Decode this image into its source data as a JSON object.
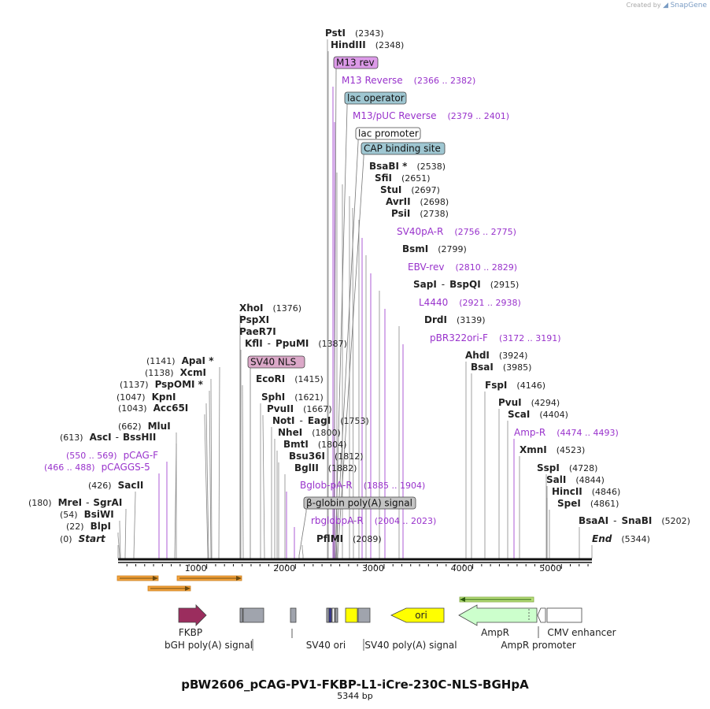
{
  "credit": {
    "text": "Created by",
    "brand": "SnapGene"
  },
  "title": "pBW2606_pCAG-PV1-FKBP-L1-iCre-230C-NLS-BGHpA",
  "subtitle": "5344 bp",
  "sequence_length": 5344,
  "axis_ticks": [
    1000,
    2000,
    3000,
    4000,
    5000
  ],
  "colors": {
    "site": "#000000",
    "primer": "#9933cc",
    "leader": "#888888",
    "primer_leader": "#9933cc"
  },
  "site_labels": [
    {
      "name": "Start",
      "pos": "(0)",
      "side": "left",
      "italic": true
    },
    {
      "name": "BlpI",
      "pos": "(22)",
      "side": "left"
    },
    {
      "name": "BsiWI",
      "pos": "(54)",
      "side": "left"
    },
    {
      "name": "MreI",
      "name2": "SgrAI",
      "pos": "(180)",
      "side": "left"
    },
    {
      "name": "SacII",
      "pos": "(426)",
      "side": "left"
    },
    {
      "name": "pCAGGS-5",
      "pos": "(466 .. 488)",
      "side": "left",
      "primer": true
    },
    {
      "name": "pCAG-F",
      "pos": "(550 .. 569)",
      "side": "left",
      "primer": true
    },
    {
      "name": "AscI",
      "name2": "BssHII",
      "pos": "(613)",
      "side": "left"
    },
    {
      "name": "MluI",
      "pos": "(662)",
      "side": "left"
    },
    {
      "name": "Acc65I",
      "pos": "(1043)",
      "side": "left"
    },
    {
      "name": "KpnI",
      "pos": "(1047)",
      "side": "left"
    },
    {
      "name": "PspOMI *",
      "pos": "(1137)",
      "side": "left"
    },
    {
      "name": "XcmI",
      "pos": "(1138)",
      "side": "left"
    },
    {
      "name": "ApaI *",
      "pos": "(1141)",
      "side": "left"
    },
    {
      "name": "XhoI",
      "pos": "(1376)",
      "side": "right"
    },
    {
      "name": "PspXI",
      "pos": "",
      "side": "right"
    },
    {
      "name": "PaeR7I",
      "pos": "",
      "side": "right"
    },
    {
      "name": "KflI",
      "name2": "PpuMI",
      "pos": "(1387)",
      "side": "right"
    },
    {
      "name": "EcoRI",
      "pos": "(1415)",
      "side": "right"
    },
    {
      "name": "SphI",
      "pos": "(1621)",
      "side": "right"
    },
    {
      "name": "PvuII",
      "pos": "(1667)",
      "side": "right"
    },
    {
      "name": "NotI",
      "name2": "EagI",
      "pos": "(1753)",
      "side": "right"
    },
    {
      "name": "NheI",
      "pos": "(1800)",
      "side": "right"
    },
    {
      "name": "BmtI",
      "pos": "(1804)",
      "side": "right"
    },
    {
      "name": "Bsu36I",
      "pos": "(1812)",
      "side": "right"
    },
    {
      "name": "BglII",
      "pos": "(1882)",
      "side": "right"
    },
    {
      "name": "Bglob-pA-R",
      "pos": "(1885 .. 1904)",
      "side": "right",
      "primer": true
    },
    {
      "name": "rbglobpA-R",
      "pos": "(2004 .. 2023)",
      "side": "right",
      "primer": true
    },
    {
      "name": "PflMI",
      "pos": "(2089)",
      "side": "right"
    },
    {
      "name": "PstI",
      "pos": "(2343)",
      "side": "right"
    },
    {
      "name": "HindIII",
      "pos": "(2348)",
      "side": "right"
    },
    {
      "name": "M13 Reverse",
      "pos": "(2366 .. 2382)",
      "side": "right",
      "primer": true
    },
    {
      "name": "M13/pUC Reverse",
      "pos": "(2379 .. 2401)",
      "side": "right",
      "primer": true
    },
    {
      "name": "BsaBI *",
      "pos": "(2538)",
      "side": "right"
    },
    {
      "name": "SfiI",
      "pos": "(2651)",
      "side": "right"
    },
    {
      "name": "StuI",
      "pos": "(2697)",
      "side": "right"
    },
    {
      "name": "AvrII",
      "pos": "(2698)",
      "side": "right"
    },
    {
      "name": "PsiI",
      "pos": "(2738)",
      "side": "right"
    },
    {
      "name": "SV40pA-R",
      "pos": "(2756 .. 2775)",
      "side": "right",
      "primer": true
    },
    {
      "name": "BsmI",
      "pos": "(2799)",
      "side": "right"
    },
    {
      "name": "EBV-rev",
      "pos": "(2810 .. 2829)",
      "side": "right",
      "primer": true
    },
    {
      "name": "SapI",
      "name2": "BspQI",
      "pos": "(2915)",
      "side": "right"
    },
    {
      "name": "L4440",
      "pos": "(2921 .. 2938)",
      "side": "right",
      "primer": true
    },
    {
      "name": "DrdI",
      "pos": "(3139)",
      "side": "right"
    },
    {
      "name": "pBR322ori-F",
      "pos": "(3172 .. 3191)",
      "side": "right",
      "primer": true
    },
    {
      "name": "AhdI",
      "pos": "(3924)",
      "side": "right"
    },
    {
      "name": "BsaI",
      "pos": "(3985)",
      "side": "right"
    },
    {
      "name": "FspI",
      "pos": "(4146)",
      "side": "right"
    },
    {
      "name": "PvuI",
      "pos": "(4294)",
      "side": "right"
    },
    {
      "name": "ScaI",
      "pos": "(4404)",
      "side": "right"
    },
    {
      "name": "Amp-R",
      "pos": "(4474 .. 4493)",
      "side": "right",
      "primer": true
    },
    {
      "name": "XmnI",
      "pos": "(4523)",
      "side": "right"
    },
    {
      "name": "SspI",
      "pos": "(4728)",
      "side": "right"
    },
    {
      "name": "SalI",
      "pos": "(4844)",
      "side": "right"
    },
    {
      "name": "HincII",
      "pos": "(4846)",
      "side": "right"
    },
    {
      "name": "SpeI",
      "pos": "(4861)",
      "side": "right"
    },
    {
      "name": "BsaAI",
      "name2": "SnaBI",
      "pos": "(5202)",
      "side": "right"
    },
    {
      "name": "End",
      "pos": "(5344)",
      "side": "right",
      "italic": true
    }
  ],
  "boxed_features": [
    {
      "name": "SV40 NLS",
      "fill": "#dba8c8"
    },
    {
      "name": "M13 rev",
      "fill": "#dc9ae8"
    },
    {
      "name": "lac operator",
      "fill": "#9fc7d2"
    },
    {
      "name": "lac promoter",
      "fill": "#ffffff"
    },
    {
      "name": "CAP binding site",
      "fill": "#9fc7d2"
    },
    {
      "name": "β-globin poly(A) signal",
      "fill": "#c4c4c4"
    }
  ],
  "features": [
    {
      "name": "FKBP",
      "color": "#9b2d5e"
    },
    {
      "name": "bGH poly(A) signal",
      "color": "#a0a4ad"
    },
    {
      "name": "SV40 ori",
      "color": "#a0a4ad"
    },
    {
      "name": "SV40 poly(A) signal",
      "color": "#a0a4ad"
    },
    {
      "name": "ori",
      "color": "#ffff00"
    },
    {
      "name": "AmpR",
      "color": "#ccffcc"
    },
    {
      "name": "AmpR promoter",
      "color": "#ffffff"
    },
    {
      "name": "CMV enhancer",
      "color": "#ffffff"
    }
  ]
}
